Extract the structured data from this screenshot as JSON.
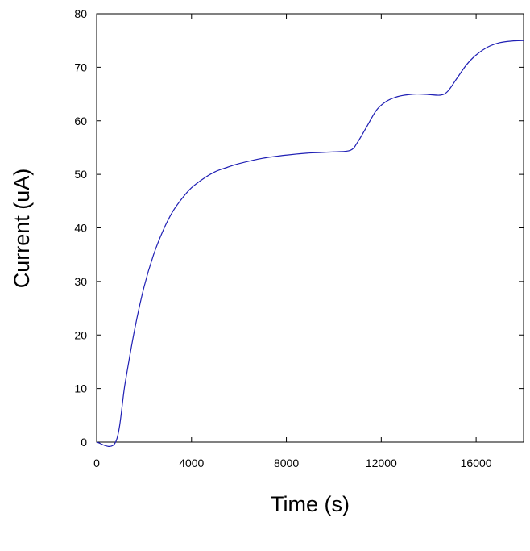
{
  "chart_data": {
    "type": "line",
    "title": "",
    "xlabel": "Time (s)",
    "ylabel": "Current (uA)",
    "xlim": [
      0,
      18000
    ],
    "ylim": [
      0,
      80
    ],
    "xticks": [
      0,
      4000,
      8000,
      12000,
      16000
    ],
    "yticks": [
      0,
      10,
      20,
      30,
      40,
      50,
      60,
      70,
      80
    ],
    "grid": false,
    "legend": "none",
    "series": [
      {
        "color": "#1f1fb4",
        "x": [
          0,
          800,
          1200,
          1600,
          2000,
          2400,
          2800,
          3200,
          3600,
          4000,
          4500,
          5000,
          5500,
          6000,
          7000,
          8000,
          9000,
          10000,
          10700,
          11000,
          11400,
          11800,
          12200,
          12600,
          13000,
          13500,
          14000,
          14500,
          14800,
          15200,
          15600,
          16000,
          16500,
          17000,
          17500,
          18000
        ],
        "y": [
          0,
          0,
          11,
          21,
          29,
          35,
          39.5,
          43,
          45.5,
          47.5,
          49.2,
          50.5,
          51.3,
          52,
          53,
          53.6,
          54,
          54.2,
          54.5,
          56,
          59,
          62,
          63.6,
          64.4,
          64.8,
          65,
          64.9,
          64.8,
          65.5,
          68,
          70.5,
          72.3,
          73.8,
          74.6,
          74.9,
          75
        ]
      }
    ]
  }
}
